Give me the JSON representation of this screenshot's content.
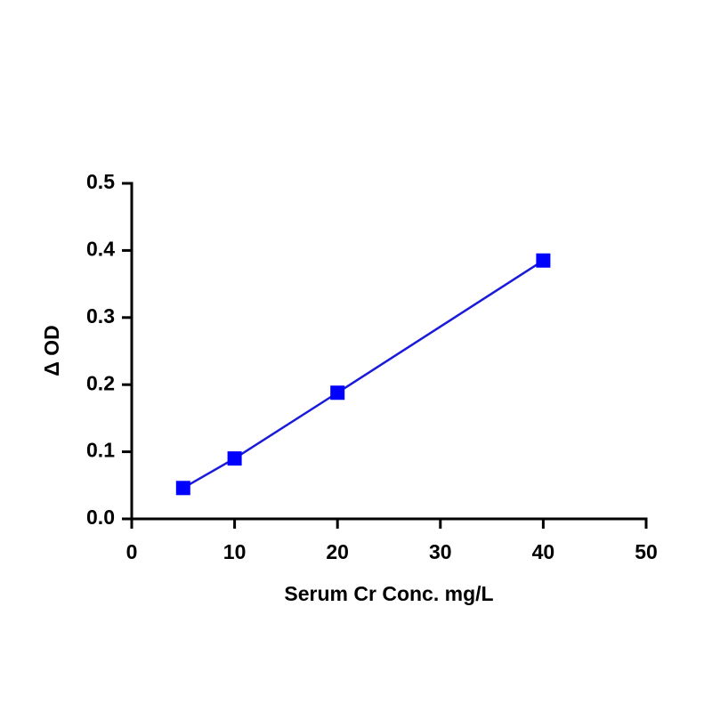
{
  "chart_data": {
    "type": "line",
    "x_label": "Serum Cr Conc. mg/L",
    "y_label": "Δ OD",
    "x": [
      5,
      10,
      20,
      40
    ],
    "series": [
      {
        "color": "#0000ff",
        "line_color": "#1a1adb",
        "marker": "square",
        "values": [
          0.046,
          0.09,
          0.188,
          0.385
        ]
      }
    ],
    "xlim": [
      0,
      50
    ],
    "xticks": [
      0,
      10,
      20,
      30,
      40,
      50
    ],
    "ylim": [
      0,
      0.5
    ],
    "yticks": [
      {
        "value": 0,
        "label": "0.0"
      },
      0.1,
      0.2,
      0.3,
      0.4,
      0.5
    ]
  }
}
